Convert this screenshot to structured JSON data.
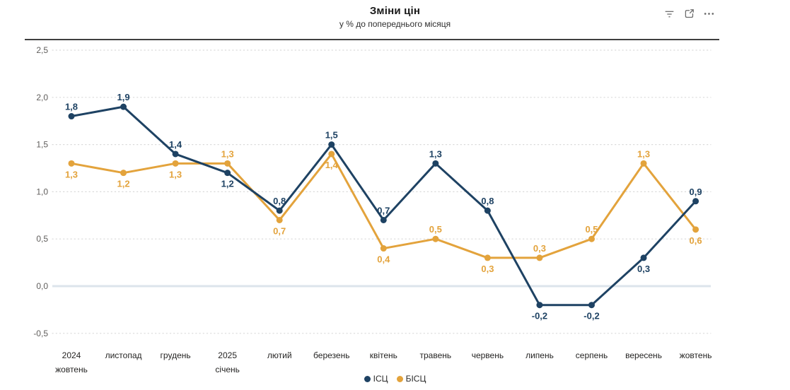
{
  "header": {
    "icons": [
      {
        "name": "filter-icon"
      },
      {
        "name": "focus-mode-icon"
      },
      {
        "name": "more-options-icon"
      }
    ]
  },
  "chart_data": {
    "type": "line",
    "title": "Зміни цін",
    "subtitle": "у % до попереднього місяця",
    "categories": [
      {
        "label": "жовтень",
        "year": "2024"
      },
      {
        "label": "листопад"
      },
      {
        "label": "грудень"
      },
      {
        "label": "січень",
        "year": "2025"
      },
      {
        "label": "лютий"
      },
      {
        "label": "березень"
      },
      {
        "label": "квітень"
      },
      {
        "label": "травень"
      },
      {
        "label": "червень"
      },
      {
        "label": "липень"
      },
      {
        "label": "серпень"
      },
      {
        "label": "вересень"
      },
      {
        "label": "жовтень"
      }
    ],
    "series": [
      {
        "name": "ІСЦ",
        "color": "#1e4263",
        "values": [
          1.8,
          1.9,
          1.4,
          1.2,
          0.8,
          1.5,
          0.7,
          1.3,
          0.8,
          -0.2,
          -0.2,
          0.3,
          0.9
        ],
        "label_positions": [
          "above",
          "above",
          "above",
          "below",
          "above",
          "above",
          "above",
          "above",
          "above",
          "below",
          "below",
          "below",
          "above"
        ]
      },
      {
        "name": "БІСЦ",
        "color": "#e3a33c",
        "values": [
          1.3,
          1.2,
          1.3,
          1.3,
          0.7,
          1.4,
          0.4,
          0.5,
          0.3,
          0.3,
          0.5,
          1.3,
          0.6
        ],
        "label_positions": [
          "below",
          "below",
          "below",
          "above",
          "below",
          "below",
          "below",
          "above",
          "below",
          "above",
          "above",
          "above",
          "below"
        ]
      }
    ],
    "ylim": [
      -0.5,
      2.5
    ],
    "y_tick_step": 0.5,
    "y_tick_labels": [
      "2,5",
      "2,0",
      "1,5",
      "1,0",
      "0,5",
      "0,0",
      "-0,5"
    ],
    "decimal_separator": ",",
    "grid": "dotted-horizontal",
    "zero_line": true,
    "legend_position": "bottom-center"
  },
  "colors": {
    "axis_text": "#605e5c",
    "category_text": "#252423",
    "gridline": "#d9d9d9",
    "zero_line": "#dce4eb",
    "divider": "#3f3f3f",
    "icon": "#6b6b6b",
    "background": "#ffffff"
  }
}
